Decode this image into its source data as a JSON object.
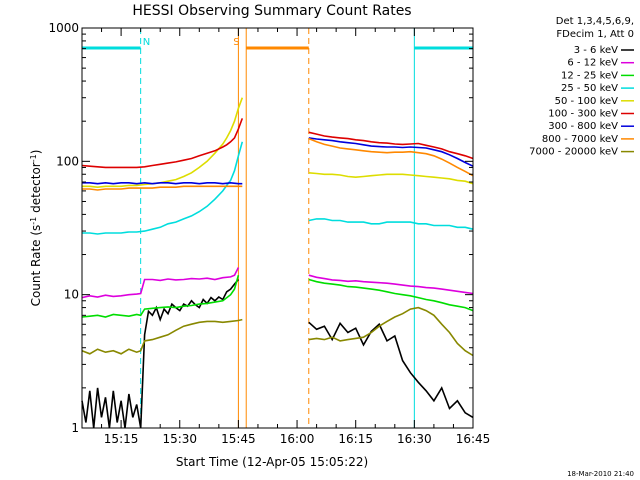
{
  "chart_data": {
    "type": "line",
    "title": "HESSI Observing Summary Count Rates",
    "xlabel": "Start Time (12-Apr-05 15:05:22)",
    "ylabel_main": "Count Rate (s",
    "ylabel_sup1": "-1",
    "ylabel_mid": " detector",
    "ylabel_sup2": "-1",
    "ylabel_end": ")",
    "yscale": "log",
    "ylim": [
      1,
      1000
    ],
    "xlim_minutes": [
      0,
      100
    ],
    "x_ticks": [
      {
        "m": 10,
        "label": "15:15"
      },
      {
        "m": 25,
        "label": "15:30"
      },
      {
        "m": 40,
        "label": "15:45"
      },
      {
        "m": 55,
        "label": "16:00"
      },
      {
        "m": 70,
        "label": "16:15"
      },
      {
        "m": 85,
        "label": "16:30"
      },
      {
        "m": 100,
        "label": "16:45"
      }
    ],
    "y_ticks": [
      {
        "v": 1,
        "label": "1"
      },
      {
        "v": 10,
        "label": "10"
      },
      {
        "v": 100,
        "label": "100"
      },
      {
        "v": 1000,
        "label": "1000"
      }
    ],
    "legend_header": [
      "Det 1,3,4,5,6,9,",
      "FDecim 1, Att 0"
    ],
    "legend_placement": "right",
    "footer_date": "18-Mar-2010 21:40",
    "series": [
      {
        "name": "3 - 6 keV",
        "color": "#000000",
        "x": [
          0,
          1,
          2,
          3,
          4,
          5,
          6,
          7,
          8,
          9,
          10,
          11,
          12,
          13,
          14,
          15,
          16,
          17,
          18,
          19,
          20,
          21,
          22,
          23,
          24,
          25,
          26,
          27,
          28,
          29,
          30,
          31,
          32,
          33,
          34,
          35,
          36,
          37,
          38,
          39,
          40,
          58,
          60,
          62,
          64,
          66,
          68,
          70,
          72,
          74,
          76,
          78,
          80,
          82,
          84,
          86,
          88,
          90,
          92,
          94,
          96,
          98,
          100
        ],
        "y": [
          1.6,
          1.1,
          1.9,
          1.0,
          2.0,
          1.2,
          1.7,
          1.0,
          1.9,
          1.1,
          1.6,
          1.0,
          1.8,
          1.2,
          1.5,
          1.0,
          5.0,
          7.5,
          7.0,
          8.0,
          6.5,
          7.8,
          7.2,
          8.5,
          8.0,
          7.6,
          8.5,
          8.2,
          9.0,
          8.4,
          8.0,
          9.2,
          8.6,
          9.5,
          9.0,
          9.6,
          9.2,
          10.5,
          11,
          12,
          13,
          6.2,
          5.5,
          5.8,
          4.6,
          6.1,
          5.2,
          5.6,
          4.2,
          5.3,
          6.0,
          4.5,
          4.9,
          3.2,
          2.6,
          2.2,
          1.9,
          1.6,
          2.0,
          1.4,
          1.6,
          1.3,
          1.2
        ]
      },
      {
        "name": "6 - 12 keV",
        "color": "#dd00dd",
        "x": [
          0,
          2,
          4,
          6,
          8,
          10,
          12,
          14,
          15,
          16,
          18,
          20,
          22,
          24,
          26,
          28,
          30,
          32,
          34,
          36,
          38,
          39,
          40,
          58,
          60,
          62,
          64,
          66,
          68,
          70,
          72,
          74,
          76,
          78,
          80,
          82,
          84,
          86,
          88,
          90,
          92,
          94,
          96,
          98,
          100
        ],
        "y": [
          9.5,
          9.8,
          9.6,
          9.9,
          9.7,
          9.8,
          10.0,
          10.1,
          10.2,
          13.0,
          13.0,
          12.8,
          13.1,
          12.9,
          13.0,
          13.2,
          13.1,
          13.3,
          13.0,
          13.4,
          13.6,
          14.0,
          16.0,
          14.0,
          13.5,
          13.2,
          12.9,
          12.8,
          12.6,
          12.7,
          12.5,
          12.4,
          12.3,
          12.2,
          12.0,
          11.8,
          11.6,
          11.5,
          11.3,
          11.2,
          11.0,
          10.8,
          10.6,
          10.4,
          10.2
        ]
      },
      {
        "name": "12 - 25 keV",
        "color": "#00dd00",
        "x": [
          0,
          2,
          4,
          6,
          8,
          10,
          12,
          14,
          15,
          16,
          18,
          20,
          22,
          24,
          26,
          28,
          30,
          32,
          34,
          36,
          38,
          39,
          40,
          58,
          60,
          62,
          64,
          66,
          68,
          70,
          72,
          74,
          76,
          78,
          80,
          82,
          84,
          86,
          88,
          90,
          92,
          94,
          96,
          98,
          100
        ],
        "y": [
          6.8,
          6.9,
          7.0,
          6.8,
          7.1,
          7.0,
          6.9,
          7.1,
          7.0,
          7.8,
          7.9,
          8.0,
          8.1,
          8.0,
          8.2,
          8.3,
          8.5,
          8.6,
          8.8,
          9.0,
          10.0,
          11.0,
          14.0,
          13.0,
          12.5,
          12.2,
          12.0,
          11.8,
          11.5,
          11.4,
          11.2,
          11.0,
          10.8,
          10.5,
          10.2,
          10.0,
          9.8,
          9.5,
          9.2,
          9.0,
          8.7,
          8.4,
          8.2,
          8.0,
          7.6
        ]
      },
      {
        "name": "25 - 50 keV",
        "color": "#00dddd",
        "x": [
          0,
          2,
          4,
          6,
          8,
          10,
          12,
          14,
          16,
          18,
          20,
          22,
          24,
          26,
          28,
          30,
          32,
          34,
          36,
          37,
          38,
          39,
          40,
          41,
          58,
          60,
          62,
          64,
          66,
          68,
          70,
          72,
          74,
          76,
          78,
          80,
          82,
          84,
          86,
          88,
          90,
          92,
          94,
          96,
          98,
          100
        ],
        "y": [
          29,
          29,
          28.5,
          29,
          29,
          29,
          29.5,
          29.5,
          30,
          31,
          32,
          34,
          35,
          37,
          39,
          42,
          46,
          52,
          60,
          66,
          72,
          85,
          110,
          140,
          36,
          37,
          37,
          36,
          36,
          35,
          35,
          35,
          34,
          34,
          35,
          35,
          35,
          35,
          34,
          34,
          33,
          33,
          33,
          32,
          32,
          31
        ]
      },
      {
        "name": "50 - 100 keV",
        "color": "#dddd00",
        "x": [
          0,
          2,
          4,
          6,
          8,
          10,
          12,
          14,
          16,
          18,
          20,
          22,
          24,
          26,
          28,
          30,
          32,
          34,
          36,
          37,
          38,
          39,
          40,
          41,
          58,
          60,
          62,
          64,
          66,
          68,
          70,
          72,
          74,
          76,
          78,
          80,
          82,
          84,
          86,
          88,
          90,
          92,
          94,
          96,
          98,
          100
        ],
        "y": [
          65,
          65,
          64,
          65,
          65,
          65,
          66,
          66,
          67,
          68,
          69,
          71,
          73,
          77,
          82,
          90,
          100,
          115,
          135,
          150,
          170,
          200,
          250,
          300,
          82,
          81,
          80,
          80,
          79,
          77,
          76,
          77,
          78,
          79,
          80,
          80,
          80,
          79,
          78,
          77,
          76,
          75,
          74,
          72,
          71,
          68
        ]
      },
      {
        "name": "100 - 300 keV",
        "color": "#dd0000",
        "x": [
          0,
          2,
          4,
          6,
          8,
          10,
          12,
          14,
          16,
          18,
          20,
          22,
          24,
          26,
          28,
          30,
          32,
          34,
          36,
          37,
          38,
          39,
          40,
          41,
          58,
          60,
          62,
          64,
          66,
          68,
          70,
          72,
          74,
          76,
          78,
          80,
          82,
          84,
          86,
          88,
          90,
          92,
          94,
          96,
          98,
          100
        ],
        "y": [
          93,
          92,
          91,
          90,
          90,
          90,
          90,
          90,
          91,
          93,
          95,
          97,
          99,
          102,
          105,
          110,
          115,
          120,
          128,
          133,
          140,
          150,
          175,
          210,
          165,
          160,
          155,
          152,
          150,
          148,
          145,
          143,
          140,
          138,
          137,
          135,
          134,
          135,
          136,
          132,
          128,
          124,
          118,
          114,
          110,
          105
        ]
      },
      {
        "name": "300 - 800 keV",
        "color": "#0000dd",
        "x": [
          0,
          2,
          4,
          6,
          8,
          10,
          12,
          14,
          16,
          18,
          20,
          22,
          24,
          26,
          28,
          30,
          32,
          34,
          36,
          38,
          40,
          41,
          58,
          60,
          62,
          64,
          66,
          68,
          70,
          72,
          74,
          76,
          78,
          80,
          82,
          84,
          86,
          88,
          90,
          92,
          94,
          96,
          98,
          100
        ],
        "y": [
          69,
          69,
          68,
          69,
          68,
          69,
          69,
          68,
          69,
          68,
          69,
          69,
          68,
          69,
          69,
          68,
          69,
          69,
          68,
          69,
          68,
          68,
          150,
          147,
          145,
          143,
          140,
          138,
          136,
          133,
          130,
          129,
          128,
          128,
          127,
          128,
          127,
          126,
          122,
          118,
          112,
          105,
          98,
          92
        ]
      },
      {
        "name": "800 - 7000 keV",
        "color": "#ff8800",
        "x": [
          0,
          2,
          4,
          6,
          8,
          10,
          12,
          14,
          16,
          18,
          20,
          22,
          24,
          26,
          28,
          30,
          32,
          34,
          36,
          38,
          40,
          41,
          58,
          60,
          62,
          64,
          66,
          68,
          70,
          72,
          74,
          76,
          78,
          80,
          82,
          84,
          86,
          88,
          90,
          92,
          94,
          96,
          98,
          100
        ],
        "y": [
          62,
          62,
          61,
          62,
          62,
          62,
          63,
          63,
          63,
          63,
          64,
          64,
          64,
          65,
          65,
          65,
          65,
          65,
          65,
          65,
          65,
          65,
          148,
          140,
          134,
          130,
          126,
          124,
          122,
          120,
          118,
          117,
          116,
          117,
          117,
          118,
          116,
          114,
          110,
          104,
          97,
          90,
          84,
          78
        ]
      },
      {
        "name": "7000 - 20000 keV",
        "color": "#888800",
        "x": [
          0,
          2,
          4,
          6,
          8,
          10,
          12,
          14,
          15,
          16,
          18,
          20,
          22,
          24,
          26,
          28,
          30,
          32,
          34,
          36,
          38,
          40,
          41,
          58,
          60,
          62,
          64,
          66,
          68,
          70,
          72,
          74,
          76,
          78,
          80,
          82,
          84,
          86,
          88,
          90,
          92,
          94,
          96,
          98,
          100
        ],
        "y": [
          3.8,
          3.6,
          3.9,
          3.7,
          3.8,
          3.6,
          3.9,
          3.7,
          3.8,
          4.5,
          4.6,
          4.8,
          5.0,
          5.4,
          5.8,
          6.0,
          6.2,
          6.3,
          6.3,
          6.2,
          6.3,
          6.4,
          6.5,
          4.6,
          4.7,
          4.6,
          4.8,
          4.5,
          4.6,
          4.7,
          4.8,
          5.2,
          5.8,
          6.3,
          6.8,
          7.2,
          7.8,
          8.0,
          7.6,
          7.0,
          6.0,
          5.2,
          4.3,
          3.8,
          3.5
        ]
      }
    ],
    "state_bars": [
      {
        "name": "night",
        "label": "N",
        "color": "#00dddd",
        "segments": [
          [
            0,
            15
          ],
          [
            85,
            100
          ]
        ],
        "label_m": 16.5
      },
      {
        "name": "saa",
        "label": "S",
        "color": "#ff8800",
        "segments": [
          [
            42,
            58
          ]
        ],
        "label_m": 39.5
      }
    ],
    "vlines": [
      {
        "m": 15,
        "color": "#00dddd",
        "dash": true
      },
      {
        "m": 85,
        "color": "#00dddd",
        "dash": false
      },
      {
        "m": 100,
        "color": "#00dddd",
        "dash": true
      },
      {
        "m": 40,
        "color": "#ff8800",
        "dash": false
      },
      {
        "m": 42,
        "color": "#ff8800",
        "dash": false
      },
      {
        "m": 58,
        "color": "#ff8800",
        "dash": true
      }
    ]
  }
}
